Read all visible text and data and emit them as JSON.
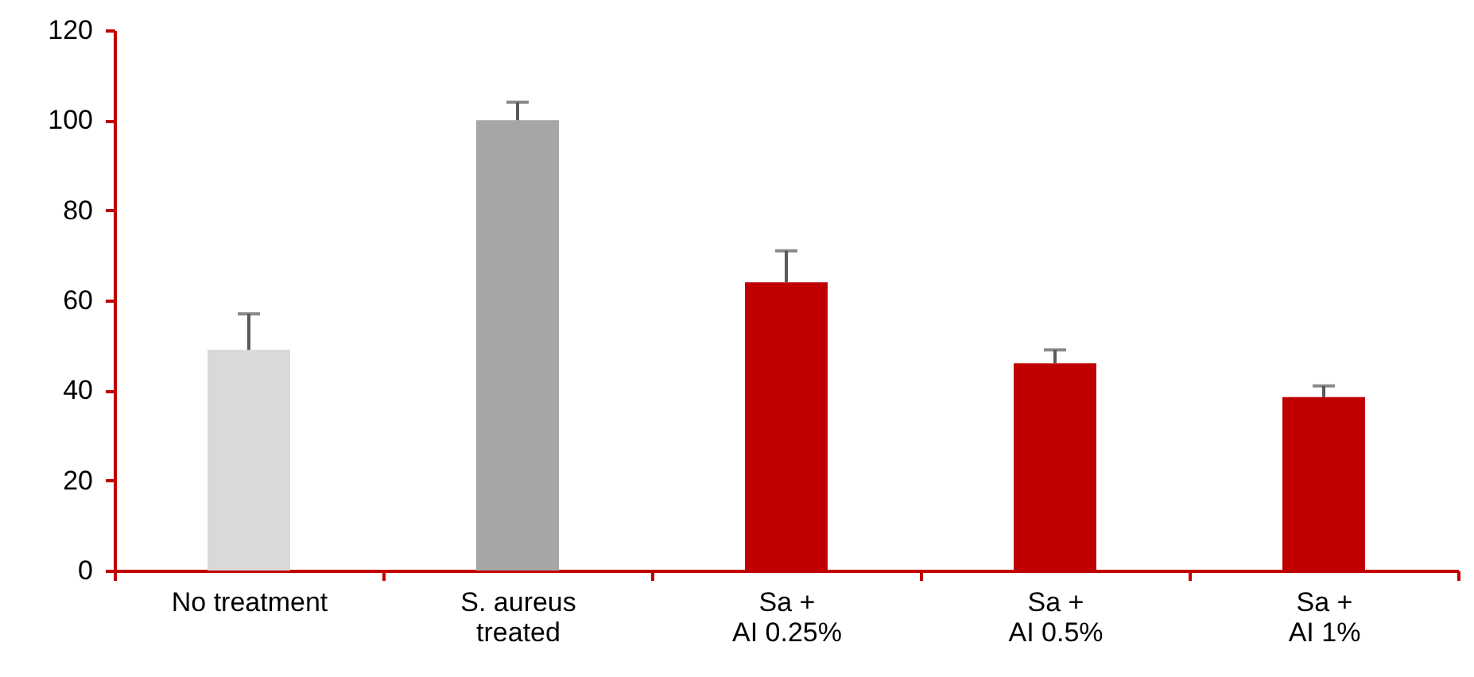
{
  "chart_data": {
    "type": "bar",
    "categories": [
      "No treatment",
      "S. aureus\ntreated",
      "Sa +\nAI 0.25%",
      "Sa +\nAI 0.5%",
      "Sa +\nAI 1%"
    ],
    "values": [
      49,
      100,
      64,
      46,
      38.5
    ],
    "colors": [
      "#d9d9d9",
      "#a6a6a6",
      "#c00000",
      "#c00000",
      "#c00000"
    ],
    "errors": [
      [
        49,
        57
      ],
      [
        100,
        104
      ],
      [
        64,
        71
      ],
      [
        46,
        49
      ],
      [
        38.5,
        41
      ]
    ],
    "ylim": [
      0,
      120
    ],
    "yticks": [
      0,
      20,
      40,
      60,
      80,
      100,
      120
    ],
    "grid": false
  }
}
